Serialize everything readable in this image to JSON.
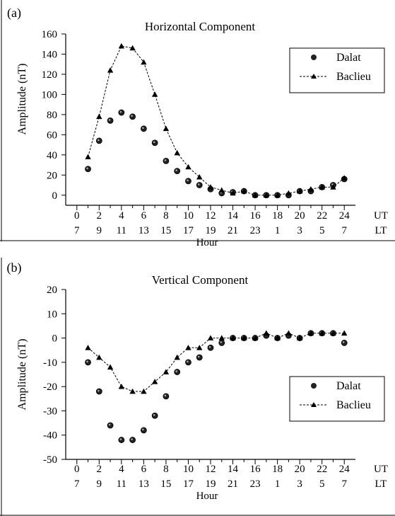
{
  "chart_data": [
    {
      "type": "scatter",
      "panel_label": "(a)",
      "title": "Horizontal Component",
      "ylabel": "Amplitude (nT)",
      "xlabel": "Hour",
      "ylim": [
        -10,
        160
      ],
      "yticks": [
        0,
        20,
        40,
        60,
        80,
        100,
        120,
        140,
        160
      ],
      "xlim": [
        -1,
        25
      ],
      "xticks": [
        0,
        2,
        4,
        6,
        8,
        10,
        12,
        14,
        16,
        18,
        20,
        22,
        24
      ],
      "ut_tick_labels": [
        "0",
        "2",
        "4",
        "6",
        "8",
        "10",
        "12",
        "14",
        "16",
        "18",
        "20",
        "22",
        "24"
      ],
      "lt_tick_labels": [
        "7",
        "9",
        "11",
        "13",
        "15",
        "17",
        "19",
        "21",
        "23",
        "1",
        "3",
        "5",
        "7"
      ],
      "ut_label": "UT",
      "lt_label": "LT",
      "legend_position": "top-right",
      "series": [
        {
          "name": "Dalat",
          "marker": "circle",
          "line": "none",
          "x": [
            1,
            2,
            3,
            4,
            5,
            6,
            7,
            8,
            9,
            10,
            11,
            12,
            13,
            14,
            15,
            16,
            17,
            18,
            19,
            20,
            21,
            22,
            23,
            24
          ],
          "values": [
            26,
            54,
            74,
            82,
            78,
            66,
            52,
            34,
            24,
            14,
            10,
            6,
            2,
            3,
            4,
            0,
            0,
            0,
            0,
            4,
            4,
            8,
            10,
            16
          ]
        },
        {
          "name": "Baclieu",
          "marker": "triangle",
          "line": "dashed",
          "x": [
            1,
            2,
            3,
            4,
            5,
            6,
            7,
            8,
            9,
            10,
            11,
            12,
            13,
            14,
            15,
            16,
            17,
            18,
            19,
            20,
            21,
            22,
            23,
            24
          ],
          "values": [
            38,
            78,
            124,
            148,
            146,
            132,
            100,
            66,
            42,
            28,
            18,
            8,
            5,
            2,
            4,
            0,
            0,
            0,
            2,
            4,
            6,
            8,
            8,
            17
          ]
        }
      ]
    },
    {
      "type": "scatter",
      "panel_label": "(b)",
      "title": "Vertical Component",
      "ylabel": "Amplitude (nT)",
      "xlabel": "Hour",
      "ylim": [
        -50,
        20
      ],
      "yticks": [
        -50,
        -40,
        -30,
        -20,
        -10,
        0,
        10,
        20
      ],
      "xlim": [
        -1,
        25
      ],
      "xticks": [
        0,
        2,
        4,
        6,
        8,
        10,
        12,
        14,
        16,
        18,
        20,
        22,
        24
      ],
      "ut_tick_labels": [
        "0",
        "2",
        "4",
        "6",
        "8",
        "10",
        "12",
        "14",
        "16",
        "18",
        "20",
        "22",
        "24"
      ],
      "lt_tick_labels": [
        "7",
        "9",
        "11",
        "13",
        "15",
        "17",
        "19",
        "21",
        "23",
        "1",
        "3",
        "5",
        "7"
      ],
      "ut_label": "UT",
      "lt_label": "LT",
      "legend_position": "bottom-right",
      "series": [
        {
          "name": "Dalat",
          "marker": "circle",
          "line": "none",
          "x": [
            1,
            2,
            3,
            4,
            5,
            6,
            7,
            8,
            9,
            10,
            11,
            12,
            13,
            14,
            15,
            16,
            17,
            18,
            19,
            20,
            21,
            22,
            23,
            24
          ],
          "values": [
            -10,
            -22,
            -36,
            -42,
            -42,
            -38,
            -32,
            -24,
            -14,
            -10,
            -8,
            -4,
            -2,
            0,
            0,
            0,
            1,
            0,
            1,
            0,
            2,
            2,
            2,
            -2
          ]
        },
        {
          "name": "Baclieu",
          "marker": "triangle",
          "line": "dashed",
          "x": [
            1,
            2,
            3,
            4,
            5,
            6,
            7,
            8,
            9,
            10,
            11,
            12,
            13,
            14,
            15,
            16,
            17,
            18,
            19,
            20,
            21,
            22,
            23,
            24
          ],
          "values": [
            -4,
            -8,
            -12,
            -20,
            -22,
            -22,
            -18,
            -14,
            -8,
            -4,
            -4,
            0,
            0,
            0,
            0,
            0,
            2,
            0,
            2,
            0,
            2,
            2,
            2,
            2
          ]
        }
      ]
    }
  ]
}
